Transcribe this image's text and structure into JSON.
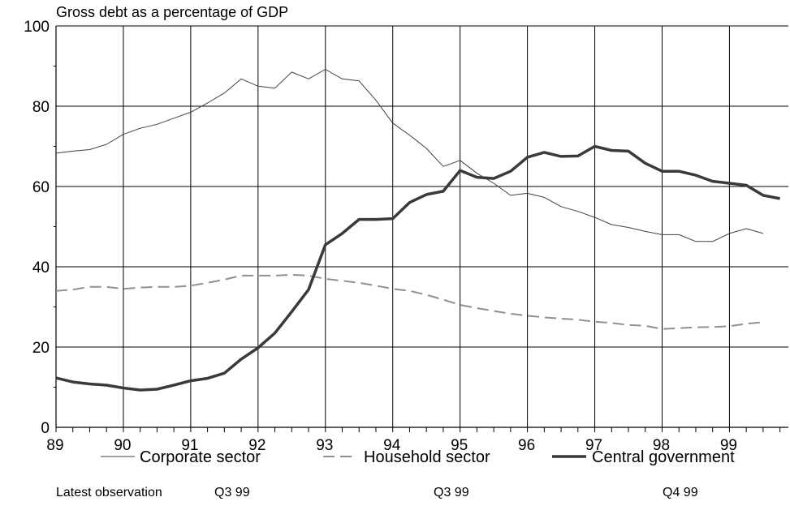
{
  "chart_data": {
    "type": "line",
    "subtitle": "Gross debt as a percentage of GDP",
    "ylim": [
      0,
      100
    ],
    "y_ticks": [
      0,
      20,
      40,
      60,
      80,
      100
    ],
    "y_tick_labels": [
      "0",
      "20",
      "40",
      "60",
      "80",
      "100"
    ],
    "xlim": [
      1989.0,
      1999.875
    ],
    "year_labels": [
      "89",
      "90",
      "91",
      "92",
      "93",
      "94",
      "95",
      "96",
      "97",
      "98",
      "99"
    ],
    "grid": true,
    "legend_position": "bottom",
    "series": [
      {
        "name": "Corporate sector",
        "color": "#404040",
        "style": "thin",
        "x": [
          1989.0,
          1989.25,
          1989.5,
          1989.75,
          1990.0,
          1990.25,
          1990.5,
          1990.75,
          1991.0,
          1991.25,
          1991.5,
          1991.75,
          1992.0,
          1992.25,
          1992.5,
          1992.75,
          1993.0,
          1993.25,
          1993.5,
          1993.75,
          1994.0,
          1994.25,
          1994.5,
          1994.75,
          1995.0,
          1995.25,
          1995.5,
          1995.75,
          1996.0,
          1996.25,
          1996.5,
          1996.75,
          1997.0,
          1997.25,
          1997.5,
          1997.75,
          1998.0,
          1998.25,
          1998.5,
          1998.75,
          1999.0,
          1999.25,
          1999.5,
          1999.75
        ],
        "y": [
          68.3,
          68.8,
          69.2,
          70.5,
          73.0,
          74.5,
          75.5,
          77.0,
          78.5,
          80.8,
          83.3,
          86.8,
          85.0,
          84.5,
          88.5,
          86.8,
          89.2,
          86.8,
          86.3,
          81.5,
          75.8,
          72.8,
          69.5,
          65.0,
          66.5,
          63.3,
          60.8,
          57.8,
          58.3,
          57.3,
          55.0,
          53.8,
          52.3,
          50.5,
          49.8,
          48.8,
          48.0,
          48.0,
          46.3,
          46.3,
          48.3,
          49.5,
          48.3,
          null
        ]
      },
      {
        "name": "Household sector",
        "color": "#909090",
        "style": "dashed",
        "x": [
          1989.0,
          1989.25,
          1989.5,
          1989.75,
          1990.0,
          1990.25,
          1990.5,
          1990.75,
          1991.0,
          1991.25,
          1991.5,
          1991.75,
          1992.0,
          1992.25,
          1992.5,
          1992.75,
          1993.0,
          1993.25,
          1993.5,
          1993.75,
          1994.0,
          1994.25,
          1994.5,
          1994.75,
          1995.0,
          1995.25,
          1995.5,
          1995.75,
          1996.0,
          1996.25,
          1996.5,
          1996.75,
          1997.0,
          1997.25,
          1997.5,
          1997.75,
          1998.0,
          1998.25,
          1998.5,
          1998.75,
          1999.0,
          1999.25,
          1999.5,
          1999.75
        ],
        "y": [
          34.0,
          34.3,
          35.0,
          35.0,
          34.5,
          34.8,
          35.0,
          35.0,
          35.3,
          36.0,
          36.8,
          37.8,
          37.8,
          37.8,
          38.0,
          37.8,
          37.0,
          36.5,
          36.0,
          35.3,
          34.5,
          34.0,
          33.0,
          31.8,
          30.5,
          29.7,
          29.0,
          28.3,
          27.8,
          27.4,
          27.1,
          26.8,
          26.3,
          26.0,
          25.5,
          25.3,
          24.5,
          24.7,
          24.9,
          25.0,
          25.2,
          25.8,
          26.2,
          null
        ]
      },
      {
        "name": "Central government",
        "color": "#3a3a3a",
        "style": "thick",
        "x": [
          1989.0,
          1989.25,
          1989.5,
          1989.75,
          1990.0,
          1990.25,
          1990.5,
          1990.75,
          1991.0,
          1991.25,
          1991.5,
          1991.75,
          1992.0,
          1992.25,
          1992.5,
          1992.75,
          1993.0,
          1993.25,
          1993.5,
          1993.75,
          1994.0,
          1994.25,
          1994.5,
          1994.75,
          1995.0,
          1995.25,
          1995.5,
          1995.75,
          1996.0,
          1996.25,
          1996.5,
          1996.75,
          1997.0,
          1997.25,
          1997.5,
          1997.75,
          1998.0,
          1998.25,
          1998.5,
          1998.75,
          1999.0,
          1999.25,
          1999.5,
          1999.75
        ],
        "y": [
          12.3,
          11.3,
          10.8,
          10.5,
          9.8,
          9.3,
          9.5,
          10.5,
          11.6,
          12.2,
          13.5,
          17.0,
          19.8,
          23.5,
          28.8,
          34.3,
          45.5,
          48.3,
          51.8,
          51.8,
          52.0,
          56.0,
          58.0,
          58.8,
          64.0,
          62.3,
          62.0,
          63.8,
          67.3,
          68.5,
          67.5,
          67.6,
          70.0,
          69.0,
          68.8,
          65.8,
          63.8,
          63.8,
          62.8,
          61.3,
          60.8,
          60.3,
          57.8,
          57.0
        ]
      }
    ],
    "legend": {
      "corporate": "Corporate sector",
      "household": "Household sector",
      "central": "Central government"
    },
    "footer": {
      "label": "Latest observation",
      "corporate": "Q3 99",
      "household": "Q3 99",
      "central": "Q4 99"
    }
  }
}
